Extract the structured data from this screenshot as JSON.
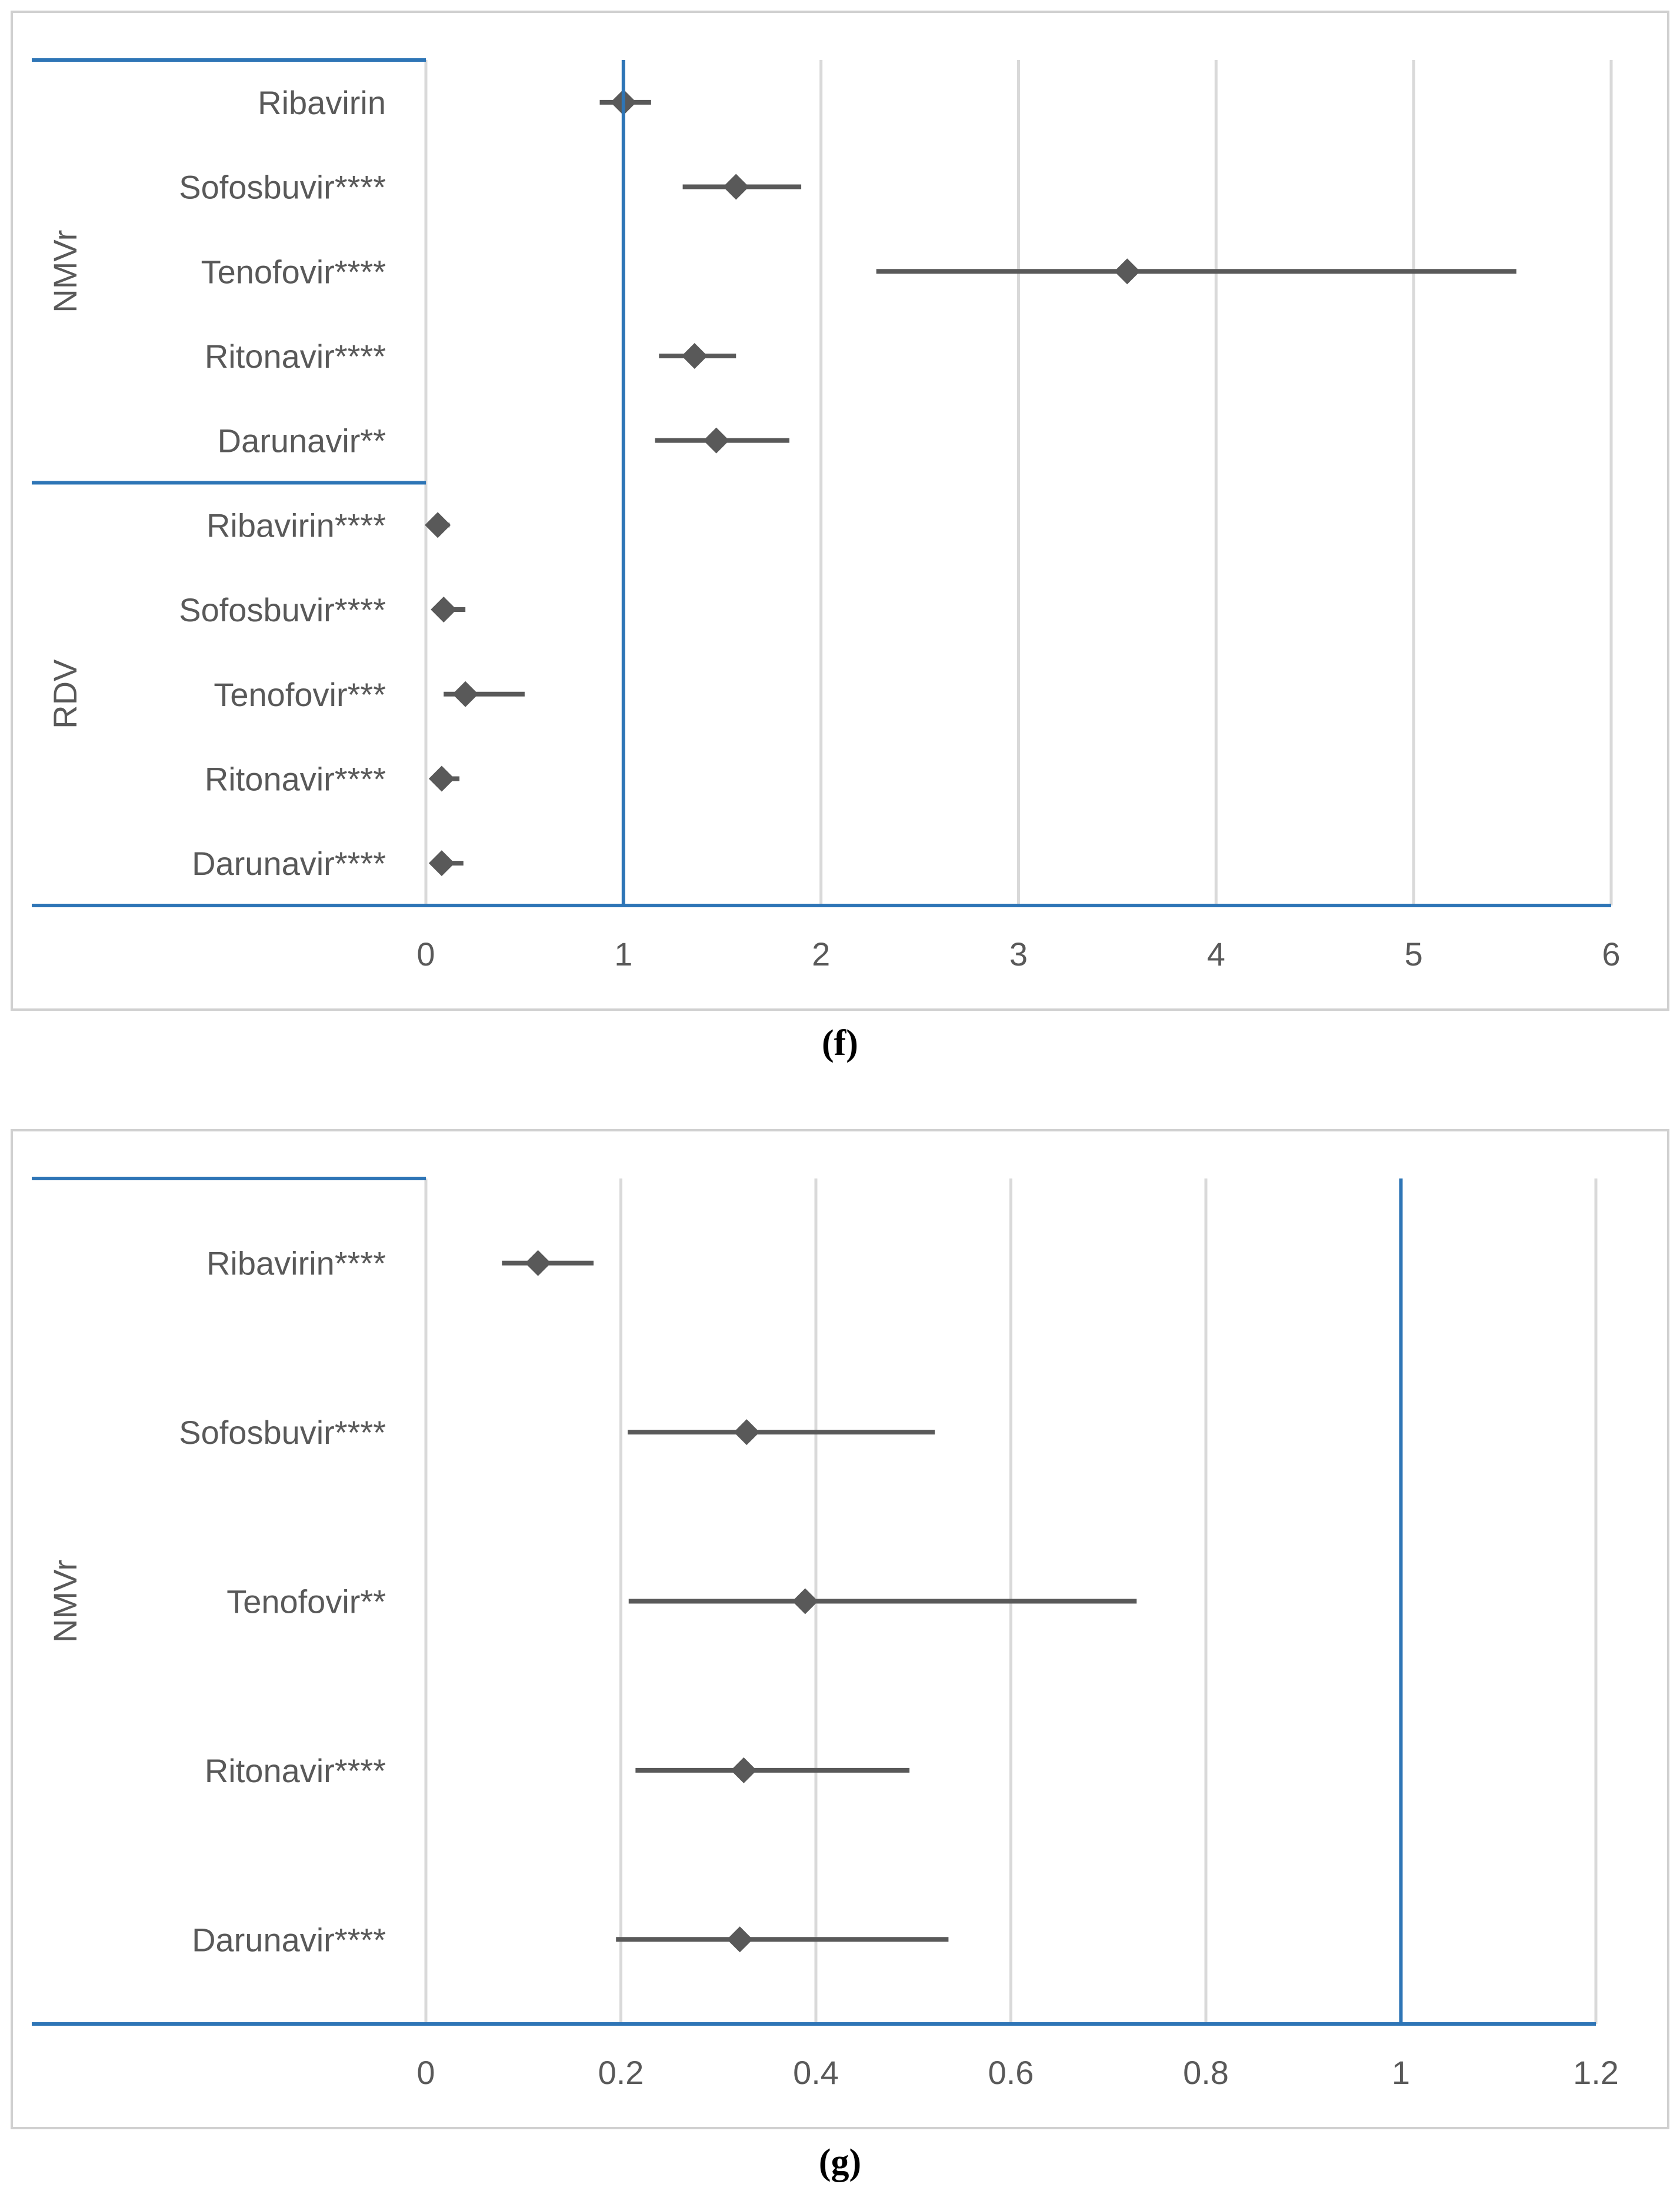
{
  "chart_data": [
    {
      "id": "f",
      "type": "forest",
      "caption": "(f)",
      "xlim": [
        0,
        6
      ],
      "xticks": [
        "0",
        "1",
        "2",
        "3",
        "4",
        "5",
        "6"
      ],
      "reference_line": 1,
      "groups": [
        {
          "name": "NMVr",
          "rows": [
            {
              "label": "Ribavirin",
              "value": 1.0,
              "low": 0.88,
              "high": 1.14
            },
            {
              "label": "Sofosbuvir****",
              "value": 1.57,
              "low": 1.3,
              "high": 1.9
            },
            {
              "label": "Tenofovir****",
              "value": 3.55,
              "low": 2.28,
              "high": 5.52
            },
            {
              "label": "Ritonavir****",
              "value": 1.36,
              "low": 1.18,
              "high": 1.57
            },
            {
              "label": "Darunavir**",
              "value": 1.47,
              "low": 1.16,
              "high": 1.84
            }
          ]
        },
        {
          "name": "RDV",
          "rows": [
            {
              "label": "Ribavirin****",
              "value": 0.06,
              "low": 0.03,
              "high": 0.12
            },
            {
              "label": "Sofosbuvir****",
              "value": 0.09,
              "low": 0.05,
              "high": 0.2
            },
            {
              "label": "Tenofovir***",
              "value": 0.2,
              "low": 0.09,
              "high": 0.5
            },
            {
              "label": "Ritonavir****",
              "value": 0.08,
              "low": 0.04,
              "high": 0.17
            },
            {
              "label": "Darunavir****",
              "value": 0.08,
              "low": 0.04,
              "high": 0.19
            }
          ]
        }
      ]
    },
    {
      "id": "g",
      "type": "forest",
      "caption": "(g)",
      "xlim": [
        0,
        1.2
      ],
      "xticks": [
        "0",
        "0.2",
        "0.4",
        "0.6",
        "0.8",
        "1",
        "1.2"
      ],
      "reference_line": 1,
      "groups": [
        {
          "name": "NMVr",
          "rows": [
            {
              "label": "Ribavirin****",
              "value": 0.115,
              "low": 0.078,
              "high": 0.172
            },
            {
              "label": "Sofosbuvir****",
              "value": 0.329,
              "low": 0.207,
              "high": 0.522
            },
            {
              "label": "Tenofovir**",
              "value": 0.389,
              "low": 0.208,
              "high": 0.729
            },
            {
              "label": "Ritonavir****",
              "value": 0.326,
              "low": 0.215,
              "high": 0.496
            },
            {
              "label": "Darunavir****",
              "value": 0.322,
              "low": 0.195,
              "high": 0.536
            }
          ]
        }
      ]
    }
  ]
}
